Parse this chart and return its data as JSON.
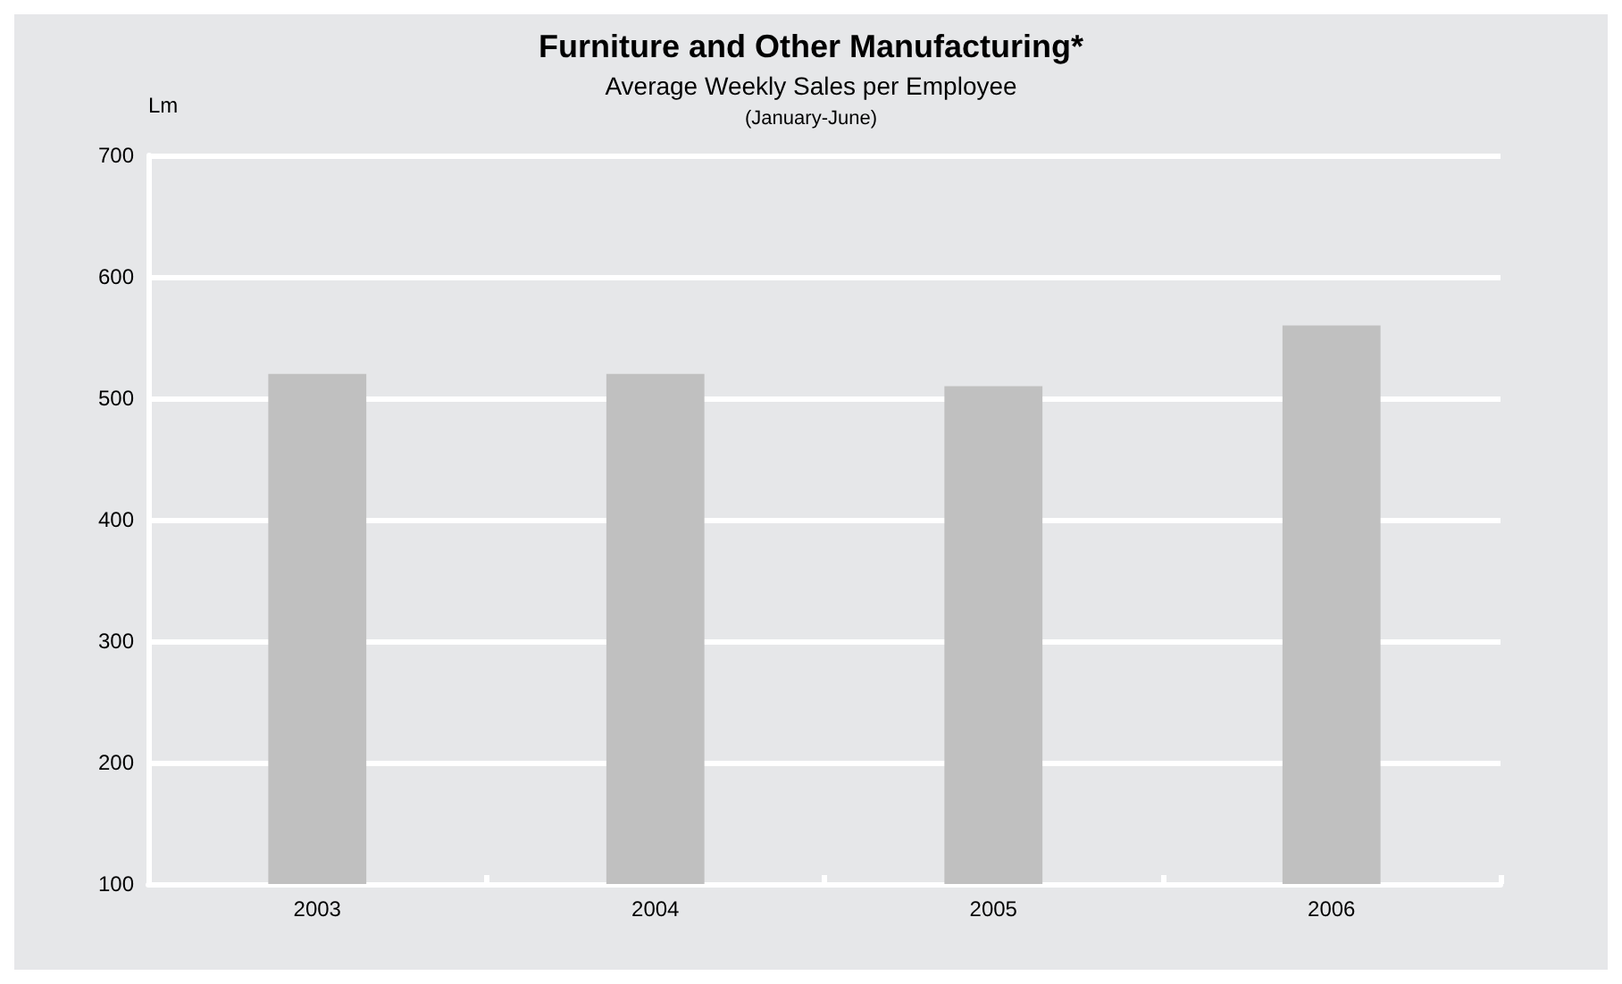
{
  "chart_data": {
    "type": "bar",
    "title": "Furniture and Other Manufacturing*",
    "subtitle": "Average Weekly Sales per Employee",
    "annotations": [
      "(January-June)"
    ],
    "ylabel": "Lm",
    "categories": [
      "2003",
      "2004",
      "2005",
      "2006"
    ],
    "values": [
      520,
      520,
      510,
      560
    ],
    "color": "#c0c0c0",
    "ylim": [
      100,
      700
    ],
    "yticks": [
      100,
      200,
      300,
      400,
      500,
      600,
      700
    ],
    "grid": "y"
  }
}
